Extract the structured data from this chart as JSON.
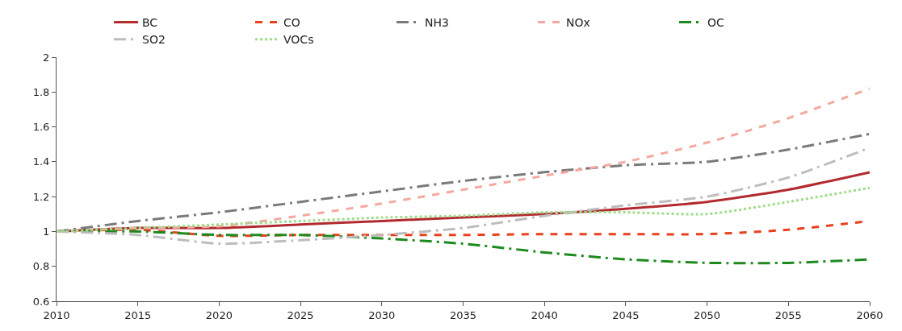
{
  "chart_data": {
    "type": "line",
    "x": [
      2010,
      2015,
      2020,
      2025,
      2030,
      2035,
      2040,
      2045,
      2050,
      2055,
      2060
    ],
    "xlim": [
      2010,
      2060
    ],
    "xticks": [
      2010,
      2015,
      2020,
      2025,
      2030,
      2035,
      2040,
      2045,
      2050,
      2055,
      2060
    ],
    "ylim": [
      0.6,
      2
    ],
    "yticks": [
      0.6,
      0.8,
      1,
      1.2,
      1.4,
      1.6,
      1.8,
      2
    ],
    "legend": "top",
    "marker": "none",
    "series": [
      {
        "name": "BC",
        "color": "#b22a2e",
        "line_style": "solid",
        "values": [
          1.0,
          1.02,
          1.02,
          1.04,
          1.06,
          1.08,
          1.1,
          1.13,
          1.17,
          1.24,
          1.34
        ]
      },
      {
        "name": "CO",
        "color": "#e8401c",
        "line_style": "dashed",
        "values": [
          1.0,
          1.01,
          0.975,
          0.98,
          0.98,
          0.98,
          0.985,
          0.985,
          0.985,
          1.01,
          1.06
        ]
      },
      {
        "name": "NH3",
        "color": "#7a7a7a",
        "line_style": "dashdot",
        "values": [
          1.0,
          1.06,
          1.11,
          1.17,
          1.23,
          1.29,
          1.34,
          1.38,
          1.4,
          1.47,
          1.56
        ]
      },
      {
        "name": "NOx",
        "color": "#f4a9a0",
        "line_style": "dashed",
        "values": [
          1.0,
          1.02,
          1.03,
          1.09,
          1.16,
          1.24,
          1.32,
          1.4,
          1.51,
          1.65,
          1.82
        ]
      },
      {
        "name": "OC",
        "color": "#1e8a1e",
        "line_style": "dashdot",
        "values": [
          1.0,
          1.0,
          0.98,
          0.98,
          0.96,
          0.93,
          0.88,
          0.84,
          0.82,
          0.82,
          0.84
        ]
      },
      {
        "name": "SO2",
        "color": "#bdbdbd",
        "line_style": "dashdot",
        "values": [
          1.0,
          0.98,
          0.93,
          0.95,
          0.98,
          1.02,
          1.09,
          1.15,
          1.2,
          1.31,
          1.48
        ]
      },
      {
        "name": "VOCs",
        "color": "#9fdc8a",
        "line_style": "dotted",
        "values": [
          1.0,
          1.02,
          1.04,
          1.06,
          1.08,
          1.09,
          1.11,
          1.11,
          1.1,
          1.17,
          1.25
        ]
      }
    ]
  }
}
